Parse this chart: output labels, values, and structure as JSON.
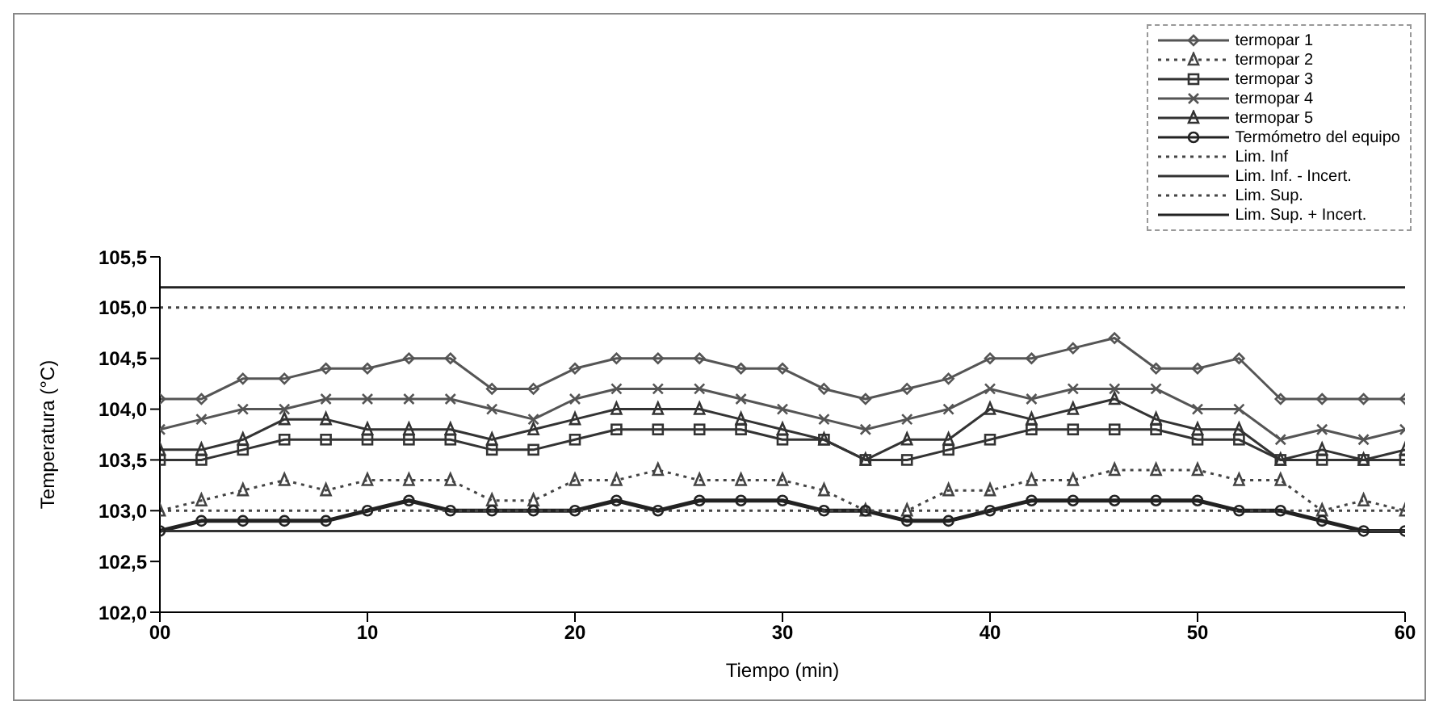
{
  "chart_data": {
    "type": "line",
    "xlabel": "Tiempo (min)",
    "ylabel": "Temperatura (°C)",
    "x": [
      0,
      2,
      4,
      6,
      8,
      10,
      12,
      14,
      16,
      18,
      20,
      22,
      24,
      26,
      28,
      30,
      32,
      34,
      36,
      38,
      40,
      42,
      44,
      46,
      48,
      50,
      52,
      54,
      56,
      58,
      60
    ],
    "xlim": [
      0,
      60
    ],
    "xticks": [
      {
        "value": 0,
        "label": "00"
      },
      10,
      20,
      30,
      40,
      50,
      60
    ],
    "ylim": [
      102,
      105.5
    ],
    "yticks": [
      {
        "value": 102,
        "label": "102,0"
      },
      {
        "value": 102.5,
        "label": "102,5"
      },
      {
        "value": 103,
        "label": "103,0"
      },
      {
        "value": 103.5,
        "label": "103,5"
      },
      {
        "value": 104,
        "label": "104,0"
      },
      {
        "value": 104.5,
        "label": "104,5"
      },
      {
        "value": 105,
        "label": "105,0"
      },
      {
        "value": 105.5,
        "label": "105,5"
      }
    ],
    "grid": false,
    "legend": "top right",
    "series": [
      {
        "name": "termopar 1",
        "color": "#555555",
        "marker": "diamond",
        "line_style": "solid",
        "values": [
          104.1,
          104.1,
          104.3,
          104.3,
          104.4,
          104.4,
          104.5,
          104.5,
          104.2,
          104.2,
          104.4,
          104.5,
          104.5,
          104.5,
          104.4,
          104.4,
          104.2,
          104.1,
          104.2,
          104.3,
          104.5,
          104.5,
          104.6,
          104.7,
          104.4,
          104.4,
          104.5,
          104.1,
          104.1,
          104.1,
          104.1
        ]
      },
      {
        "name": "termopar 2",
        "color": "#444444",
        "marker": "triangle",
        "line_style": "dotted",
        "values": [
          103.0,
          103.1,
          103.2,
          103.3,
          103.2,
          103.3,
          103.3,
          103.3,
          103.1,
          103.1,
          103.3,
          103.3,
          103.4,
          103.3,
          103.3,
          103.3,
          103.2,
          103.0,
          103.0,
          103.2,
          103.2,
          103.3,
          103.3,
          103.4,
          103.4,
          103.4,
          103.3,
          103.3,
          103.0,
          103.1,
          103.0
        ]
      },
      {
        "name": "termopar 3",
        "color": "#333333",
        "marker": "square",
        "line_style": "solid",
        "values": [
          103.5,
          103.5,
          103.6,
          103.7,
          103.7,
          103.7,
          103.7,
          103.7,
          103.6,
          103.6,
          103.7,
          103.8,
          103.8,
          103.8,
          103.8,
          103.7,
          103.7,
          103.5,
          103.5,
          103.6,
          103.7,
          103.8,
          103.8,
          103.8,
          103.8,
          103.7,
          103.7,
          103.5,
          103.5,
          103.5,
          103.5
        ]
      },
      {
        "name": "termopar 4",
        "color": "#555555",
        "marker": "cross",
        "line_style": "solid",
        "values": [
          103.8,
          103.9,
          104.0,
          104.0,
          104.1,
          104.1,
          104.1,
          104.1,
          104.0,
          103.9,
          104.1,
          104.2,
          104.2,
          104.2,
          104.1,
          104.0,
          103.9,
          103.8,
          103.9,
          104.0,
          104.2,
          104.1,
          104.2,
          104.2,
          104.2,
          104.0,
          104.0,
          103.7,
          103.8,
          103.7,
          103.8
        ]
      },
      {
        "name": "termopar 5",
        "color": "#333333",
        "marker": "triangle",
        "line_style": "solid",
        "values": [
          103.6,
          103.6,
          103.7,
          103.9,
          103.9,
          103.8,
          103.8,
          103.8,
          103.7,
          103.8,
          103.9,
          104.0,
          104.0,
          104.0,
          103.9,
          103.8,
          103.7,
          103.5,
          103.7,
          103.7,
          104.0,
          103.9,
          104.0,
          104.1,
          103.9,
          103.8,
          103.8,
          103.5,
          103.6,
          103.5,
          103.6
        ]
      },
      {
        "name": "Termómetro del equipo",
        "color": "#222222",
        "marker": "circle",
        "line_style": "solid",
        "values": [
          102.8,
          102.9,
          102.9,
          102.9,
          102.9,
          103.0,
          103.1,
          103.0,
          103.0,
          103.0,
          103.0,
          103.1,
          103.0,
          103.1,
          103.1,
          103.1,
          103.0,
          103.0,
          102.9,
          102.9,
          103.0,
          103.1,
          103.1,
          103.1,
          103.1,
          103.1,
          103.0,
          103.0,
          102.9,
          102.8,
          102.8
        ]
      },
      {
        "name": "Lim. Inf",
        "color": "#444444",
        "marker": "none",
        "line_style": "dotted",
        "values": [
          103.0,
          103.0,
          103.0,
          103.0,
          103.0,
          103.0,
          103.0,
          103.0,
          103.0,
          103.0,
          103.0,
          103.0,
          103.0,
          103.0,
          103.0,
          103.0,
          103.0,
          103.0,
          103.0,
          103.0,
          103.0,
          103.0,
          103.0,
          103.0,
          103.0,
          103.0,
          103.0,
          103.0,
          103.0,
          103.0,
          103.0
        ]
      },
      {
        "name": "Lim. Inf. - Incert.",
        "color": "#333333",
        "marker": "none",
        "line_style": "solid",
        "values": [
          102.8,
          102.8,
          102.8,
          102.8,
          102.8,
          102.8,
          102.8,
          102.8,
          102.8,
          102.8,
          102.8,
          102.8,
          102.8,
          102.8,
          102.8,
          102.8,
          102.8,
          102.8,
          102.8,
          102.8,
          102.8,
          102.8,
          102.8,
          102.8,
          102.8,
          102.8,
          102.8,
          102.8,
          102.8,
          102.8,
          102.8
        ]
      },
      {
        "name": "Lim. Sup.",
        "color": "#444444",
        "marker": "none",
        "line_style": "dotted",
        "values": [
          105.0,
          105.0,
          105.0,
          105.0,
          105.0,
          105.0,
          105.0,
          105.0,
          105.0,
          105.0,
          105.0,
          105.0,
          105.0,
          105.0,
          105.0,
          105.0,
          105.0,
          105.0,
          105.0,
          105.0,
          105.0,
          105.0,
          105.0,
          105.0,
          105.0,
          105.0,
          105.0,
          105.0,
          105.0,
          105.0,
          105.0
        ]
      },
      {
        "name": "Lim. Sup. + Incert.",
        "color": "#222222",
        "marker": "none",
        "line_style": "solid",
        "values": [
          105.2,
          105.2,
          105.2,
          105.2,
          105.2,
          105.2,
          105.2,
          105.2,
          105.2,
          105.2,
          105.2,
          105.2,
          105.2,
          105.2,
          105.2,
          105.2,
          105.2,
          105.2,
          105.2,
          105.2,
          105.2,
          105.2,
          105.2,
          105.2,
          105.2,
          105.2,
          105.2,
          105.2,
          105.2,
          105.2,
          105.2
        ]
      }
    ]
  }
}
